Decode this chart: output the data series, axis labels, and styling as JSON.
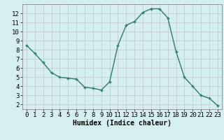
{
  "x": [
    0,
    1,
    2,
    3,
    4,
    5,
    6,
    7,
    8,
    9,
    10,
    11,
    12,
    13,
    14,
    15,
    16,
    17,
    18,
    19,
    20,
    21,
    22,
    23
  ],
  "y": [
    8.5,
    7.6,
    6.6,
    5.5,
    5.0,
    4.9,
    4.8,
    3.9,
    3.8,
    3.6,
    4.5,
    8.5,
    10.7,
    11.1,
    12.1,
    12.5,
    12.5,
    11.5,
    7.8,
    5.0,
    4.0,
    3.0,
    2.7,
    1.9
  ],
  "xlabel": "Humidex (Indice chaleur)",
  "ylim": [
    1.5,
    13.0
  ],
  "xlim": [
    -0.5,
    23.5
  ],
  "yticks": [
    2,
    3,
    4,
    5,
    6,
    7,
    8,
    9,
    10,
    11,
    12
  ],
  "xticks": [
    0,
    1,
    2,
    3,
    4,
    5,
    6,
    7,
    8,
    9,
    10,
    11,
    12,
    13,
    14,
    15,
    16,
    17,
    18,
    19,
    20,
    21,
    22,
    23
  ],
  "line_color": "#2d7a6e",
  "marker": "+",
  "bg_color": "#d5eef0",
  "grid_color": "#c0c8cc",
  "axis_bg": "#d5eef0",
  "xlabel_fontsize": 7,
  "tick_fontsize": 6.5
}
